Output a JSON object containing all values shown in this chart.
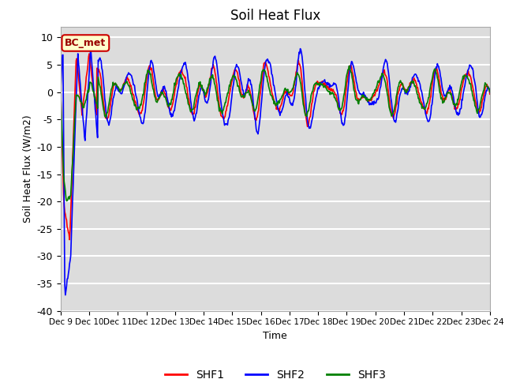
{
  "title": "Soil Heat Flux",
  "ylabel": "Soil Heat Flux (W/m2)",
  "xlabel": "Time",
  "annotation": "BC_met",
  "ylim": [
    -40,
    12
  ],
  "series_colors": [
    "red",
    "blue",
    "green"
  ],
  "series_labels": [
    "SHF1",
    "SHF2",
    "SHF3"
  ],
  "x_tick_labels": [
    "Dec 9",
    "Dec 10",
    "Dec 11",
    "Dec 12",
    "Dec 13",
    "Dec 14",
    "Dec 15",
    "Dec 16",
    "Dec 17",
    "Dec 18",
    "Dec 19",
    "Dec 20",
    "Dec 21",
    "Dec 22",
    "Dec 23",
    "Dec 24"
  ],
  "bg_color": "#dcdcdc",
  "grid_color": "white",
  "linewidth": 1.2,
  "annotation_facecolor": "#ffffcc",
  "annotation_edgecolor": "#cc0000",
  "annotation_textcolor": "#990000"
}
